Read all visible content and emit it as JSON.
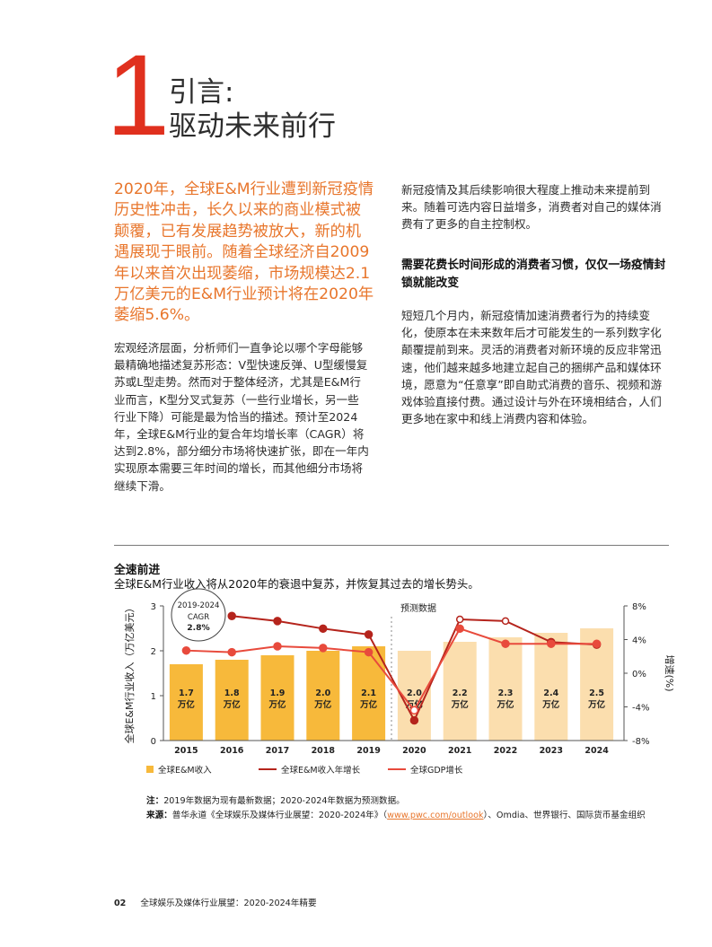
{
  "section": {
    "number": "1",
    "title_line1": "引言:",
    "title_line2": "驱动未来前行"
  },
  "lead_paragraph": "2020年，全球E&M行业遭到新冠疫情历史性冲击，长久以来的商业模式被颠覆，已有发展趋势被放大，新的机遇展现于眼前。随着全球经济自2009年以来首次出现萎缩，市场规模达2.1万亿美元的E&M行业预计将在2020年萎缩5.6%。",
  "left_body": "宏观经济层面，分析师们一直争论以哪个字母能够最精确地描述复苏形态：V型快速反弹、U型缓慢复苏或L型走势。然而对于整体经济，尤其是E&M行业而言，K型分叉式复苏（一些行业增长，另一些行业下降）可能是最为恰当的描述。预计至2024年，全球E&M行业的复合年均增长率（CAGR）将达到2.8%，部分细分市场将快速扩张，即在一年内实现原本需要三年时间的增长，而其他细分市场将继续下滑。",
  "right_intro": "新冠疫情及其后续影响很大程度上推动未来提前到来。随着可选内容日益增多，消费者对自己的媒体消费有了更多的自主控制权。",
  "right_subhead": "需要花费长时间形成的消费者习惯，仅仅一场疫情封锁就能改变",
  "right_body": "短短几个月内，新冠疫情加速消费者行为的持续变化，使原本在未来数年后才可能发生的一系列数字化颠覆提前到来。灵活的消费者对新环境的反应非常迅速，他们越来越多地建立起自己的捆绑产品和媒体环境，愿意为“任意享”即自助式消费的音乐、视频和游戏体验直接付费。通过设计与外在环境相结合，人们更多地在家中和线上消费内容和体验。",
  "chart_title": "全速前进",
  "chart_subtitle": "全球E&M行业收入将从2020年的衰退中复苏，并恢复其过去的增长势头。",
  "chart_data": {
    "type": "bar",
    "categories": [
      "2015",
      "2016",
      "2017",
      "2018",
      "2019",
      "2020",
      "2021",
      "2022",
      "2023",
      "2024"
    ],
    "ylabel": "全球E&M行业收入（万亿美元）",
    "y2label": "增速(%)",
    "ylim": [
      0,
      3
    ],
    "y2lim": [
      -8,
      8
    ],
    "yticks": [
      "0",
      "1",
      "2",
      "3"
    ],
    "y2ticks": [
      "8%",
      "4%",
      "0%",
      "-4%",
      "-8%"
    ],
    "forecast_label": "预测数据",
    "forecast_start": "2020",
    "bar_labels": [
      {
        "value": "1.7",
        "unit": "万亿"
      },
      {
        "value": "1.8",
        "unit": "万亿"
      },
      {
        "value": "1.9",
        "unit": "万亿"
      },
      {
        "value": "2.0",
        "unit": "万亿"
      },
      {
        "value": "2.1",
        "unit": "万亿"
      },
      {
        "value": "2.0",
        "unit": "万亿"
      },
      {
        "value": "2.2",
        "unit": "万亿"
      },
      {
        "value": "2.3",
        "unit": "万亿"
      },
      {
        "value": "2.4",
        "unit": "万亿"
      },
      {
        "value": "2.5",
        "unit": "万亿"
      }
    ],
    "series": [
      {
        "name": "全球E&M收入",
        "kind": "bar",
        "axis": "left",
        "values": [
          1.7,
          1.8,
          1.9,
          2.0,
          2.1,
          2.0,
          2.2,
          2.3,
          2.4,
          2.5
        ],
        "color": "#f7b93b",
        "forecast_color": "#fbdeae"
      },
      {
        "name": "全球E&M收入年增长",
        "kind": "line",
        "axis": "right",
        "values": [
          null,
          6.8,
          6.2,
          5.3,
          4.6,
          -5.6,
          6.4,
          6.2,
          3.7,
          3.4
        ],
        "color": "#b5241c"
      },
      {
        "name": "全球GDP增长",
        "kind": "line",
        "axis": "right",
        "values": [
          2.7,
          2.5,
          3.2,
          3.0,
          2.5,
          -4.4,
          5.3,
          3.5,
          3.5,
          3.5
        ],
        "color": "#e84a3c"
      }
    ],
    "callout": {
      "line1": "2019-2024",
      "line2": "CAGR",
      "line3": "2.8%"
    },
    "legend_position": "bottom"
  },
  "notes": {
    "note_label": "注：",
    "note_text": "2019年数据为现有最新数据；2020-2024年数据为预测数据。",
    "source_label": "来源：",
    "source_text_a": "普华永道《全球娱乐及媒体行业展望：2020-2024年》（",
    "source_link": "www.pwc.com/outlook",
    "source_text_b": "）、Omdia、世界银行、国际货币基金组织"
  },
  "footer": {
    "page": "02",
    "text": "全球娱乐及媒体行业展望：2020-2024年精要"
  }
}
